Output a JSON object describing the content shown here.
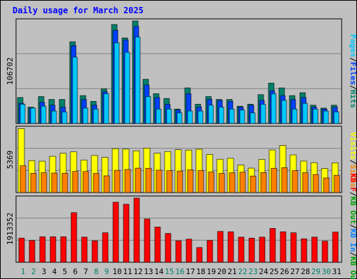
{
  "chart_data": [
    {
      "type": "bar",
      "title": "Daily usage for March 2025",
      "ylabel_parts": [
        {
          "text": "Pages",
          "color": "#00c8ff"
        },
        {
          "text": "/",
          "color": "#000000"
        },
        {
          "text": "Files",
          "color": "#0040ff"
        },
        {
          "text": "/",
          "color": "#000000"
        },
        {
          "text": "Hits",
          "color": "#00806a"
        }
      ],
      "ymax_label": "106702",
      "ymax": 106702,
      "categories": [
        "1",
        "2",
        "3",
        "4",
        "5",
        "6",
        "7",
        "8",
        "9",
        "10",
        "11",
        "12",
        "13",
        "14",
        "15",
        "16",
        "17",
        "18",
        "19",
        "20",
        "21",
        "22",
        "23",
        "24",
        "25",
        "26",
        "27",
        "28",
        "29",
        "30",
        "31"
      ],
      "weekend_days": [
        "1",
        "2",
        "8",
        "9",
        "15",
        "16",
        "22",
        "23",
        "29",
        "30"
      ],
      "series": [
        {
          "name": "Hits",
          "color": "#00806a",
          "values": [
            27000,
            17000,
            28000,
            25000,
            25000,
            85000,
            29000,
            23000,
            36000,
            103000,
            89000,
            108000,
            46000,
            31000,
            26000,
            15000,
            37000,
            20000,
            28000,
            25000,
            25000,
            18000,
            20000,
            30000,
            42000,
            37000,
            29000,
            32000,
            19000,
            16000,
            19000
          ]
        },
        {
          "name": "Files",
          "color": "#0040ff",
          "values": [
            21000,
            16000,
            22000,
            19000,
            17000,
            81000,
            25000,
            19000,
            33000,
            97000,
            87000,
            101000,
            40000,
            27000,
            20000,
            14000,
            31000,
            17000,
            25000,
            24000,
            23000,
            17000,
            19000,
            24000,
            34000,
            29000,
            25000,
            27000,
            17000,
            15000,
            17000
          ]
        },
        {
          "name": "Pages",
          "color": "#00c8ff",
          "values": [
            20000,
            16000,
            18000,
            13000,
            12000,
            69000,
            16000,
            15000,
            31000,
            84000,
            74000,
            90000,
            28000,
            15000,
            15000,
            11000,
            13000,
            13000,
            19000,
            17000,
            15000,
            14000,
            11000,
            20000,
            31000,
            24000,
            15000,
            21000,
            15000,
            13000,
            12000
          ]
        }
      ]
    },
    {
      "type": "bar",
      "ylabel_parts": [
        {
          "text": "Visits",
          "color": "#ffff00"
        },
        {
          "text": "/",
          "color": "#000000"
        },
        {
          "text": "Sites",
          "color": "#ff8000"
        }
      ],
      "ymax_label": "5369",
      "ymax": 5369,
      "series": [
        {
          "name": "Visits",
          "color": "#ffff00",
          "values": [
            5350,
            2670,
            2620,
            3030,
            3280,
            3400,
            2720,
            3100,
            2940,
            3670,
            3630,
            3490,
            3710,
            3290,
            3430,
            3580,
            3550,
            3620,
            3190,
            2790,
            2860,
            2300,
            2040,
            2770,
            3560,
            3940,
            3150,
            2630,
            2500,
            2010,
            2480
          ]
        },
        {
          "name": "Sites",
          "color": "#ff8000",
          "values": [
            2240,
            1610,
            1660,
            1630,
            1620,
            1770,
            1760,
            1600,
            1400,
            1860,
            1930,
            2040,
            2030,
            1870,
            1830,
            1800,
            1900,
            1840,
            1710,
            1600,
            1650,
            1700,
            1380,
            1670,
            2030,
            2080,
            1830,
            1660,
            1510,
            1220,
            1450
          ]
        }
      ]
    },
    {
      "type": "bar",
      "ylabel_parts": [
        {
          "text": "KB F",
          "color": "#ff0000"
        },
        {
          "text": "/",
          "color": "#000000"
        },
        {
          "text": "KB Out",
          "color": "#00a000"
        },
        {
          "text": "/",
          "color": "#000000"
        },
        {
          "text": "KB In",
          "color": "#0080ff"
        },
        {
          "text": "/",
          "color": "#000000"
        },
        {
          "text": "KB Out",
          "color": "#00a000"
        }
      ],
      "ymax_label": "1913352",
      "ymax": 1913352,
      "series": [
        {
          "name": "KB F",
          "color": "#ff0000",
          "values": [
            720000,
            650000,
            760000,
            760000,
            760000,
            1480000,
            750000,
            640000,
            880000,
            1790000,
            1730000,
            1950000,
            1290000,
            1050000,
            860000,
            640000,
            690000,
            440000,
            650000,
            920000,
            910000,
            750000,
            720000,
            750000,
            1010000,
            910000,
            880000,
            700000,
            750000,
            630000,
            900000
          ]
        }
      ]
    }
  ],
  "colors": {
    "background": "#c0c0c0",
    "title": "#0000ff",
    "gridline": "#808080",
    "weekday_label": "#000000",
    "weekend_label": "#00806a"
  }
}
